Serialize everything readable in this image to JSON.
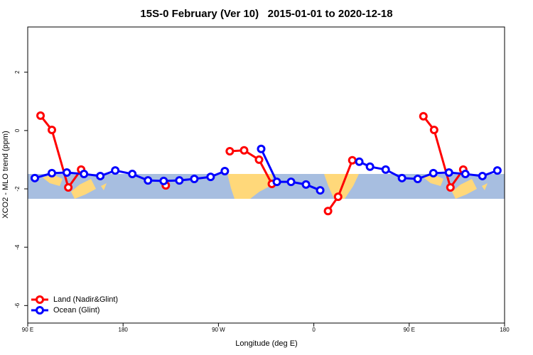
{
  "chart_data": {
    "type": "line",
    "title": "15S-0 February (Ver 10)   2015-01-01 to 2020-12-18",
    "xlabel": "Longitude (deg E)",
    "ylabel": "XCO2 - MLO trend (ppm)",
    "xlim": [
      90,
      540
    ],
    "ylim": [
      -6.6,
      3.55
    ],
    "xticks": [
      {
        "value": 90,
        "label": "90 E"
      },
      180,
      {
        "value": 270,
        "label": "90 W"
      },
      {
        "value": 360,
        "label": "0"
      },
      {
        "value": 450,
        "label": "90 E"
      },
      {
        "value": 540,
        "label": "180"
      }
    ],
    "yticks": [
      -6,
      -4,
      -2,
      0,
      2
    ],
    "legend": "bottom-left",
    "series": [
      {
        "name": "Land (Nadir&Glint)",
        "color": "#ff0000",
        "x": [
          102.1,
          112.8,
          128.3,
          140.4,
          null,
          220.3,
          null,
          280.7,
          294.2,
          308.3,
          320.4,
          null,
          373.4,
          382.9,
          396.3,
          null,
          463.4,
          473.5,
          488.9,
          501.0
        ],
        "values": [
          0.51,
          0.02,
          -1.95,
          -1.34,
          null,
          -1.88,
          null,
          -0.71,
          -0.68,
          -1.0,
          -1.83,
          null,
          -2.76,
          -2.27,
          -1.02,
          null,
          0.49,
          0.02,
          -1.95,
          -1.34
        ]
      },
      {
        "name": "Ocean (Glint)",
        "color": "#0000ff",
        "x": [
          96.7,
          112.8,
          126.9,
          143.1,
          158.5,
          172.6,
          188.7,
          203.5,
          218.3,
          233.1,
          247.2,
          262.6,
          276.0,
          null,
          310.3,
          325.1,
          338.5,
          352.6,
          366.0,
          null,
          402.9,
          413.0,
          427.8,
          443.2,
          458.0,
          472.8,
          487.5,
          503.0,
          519.1,
          533.2
        ],
        "values": [
          -1.63,
          -1.46,
          -1.44,
          -1.49,
          -1.56,
          -1.37,
          -1.49,
          -1.71,
          -1.73,
          -1.71,
          -1.66,
          -1.59,
          -1.39,
          null,
          -0.63,
          -1.76,
          -1.76,
          -1.85,
          -2.05,
          null,
          -1.07,
          -1.24,
          -1.34,
          -1.63,
          -1.66,
          -1.46,
          -1.44,
          -1.49,
          -1.56,
          -1.37
        ]
      }
    ]
  }
}
